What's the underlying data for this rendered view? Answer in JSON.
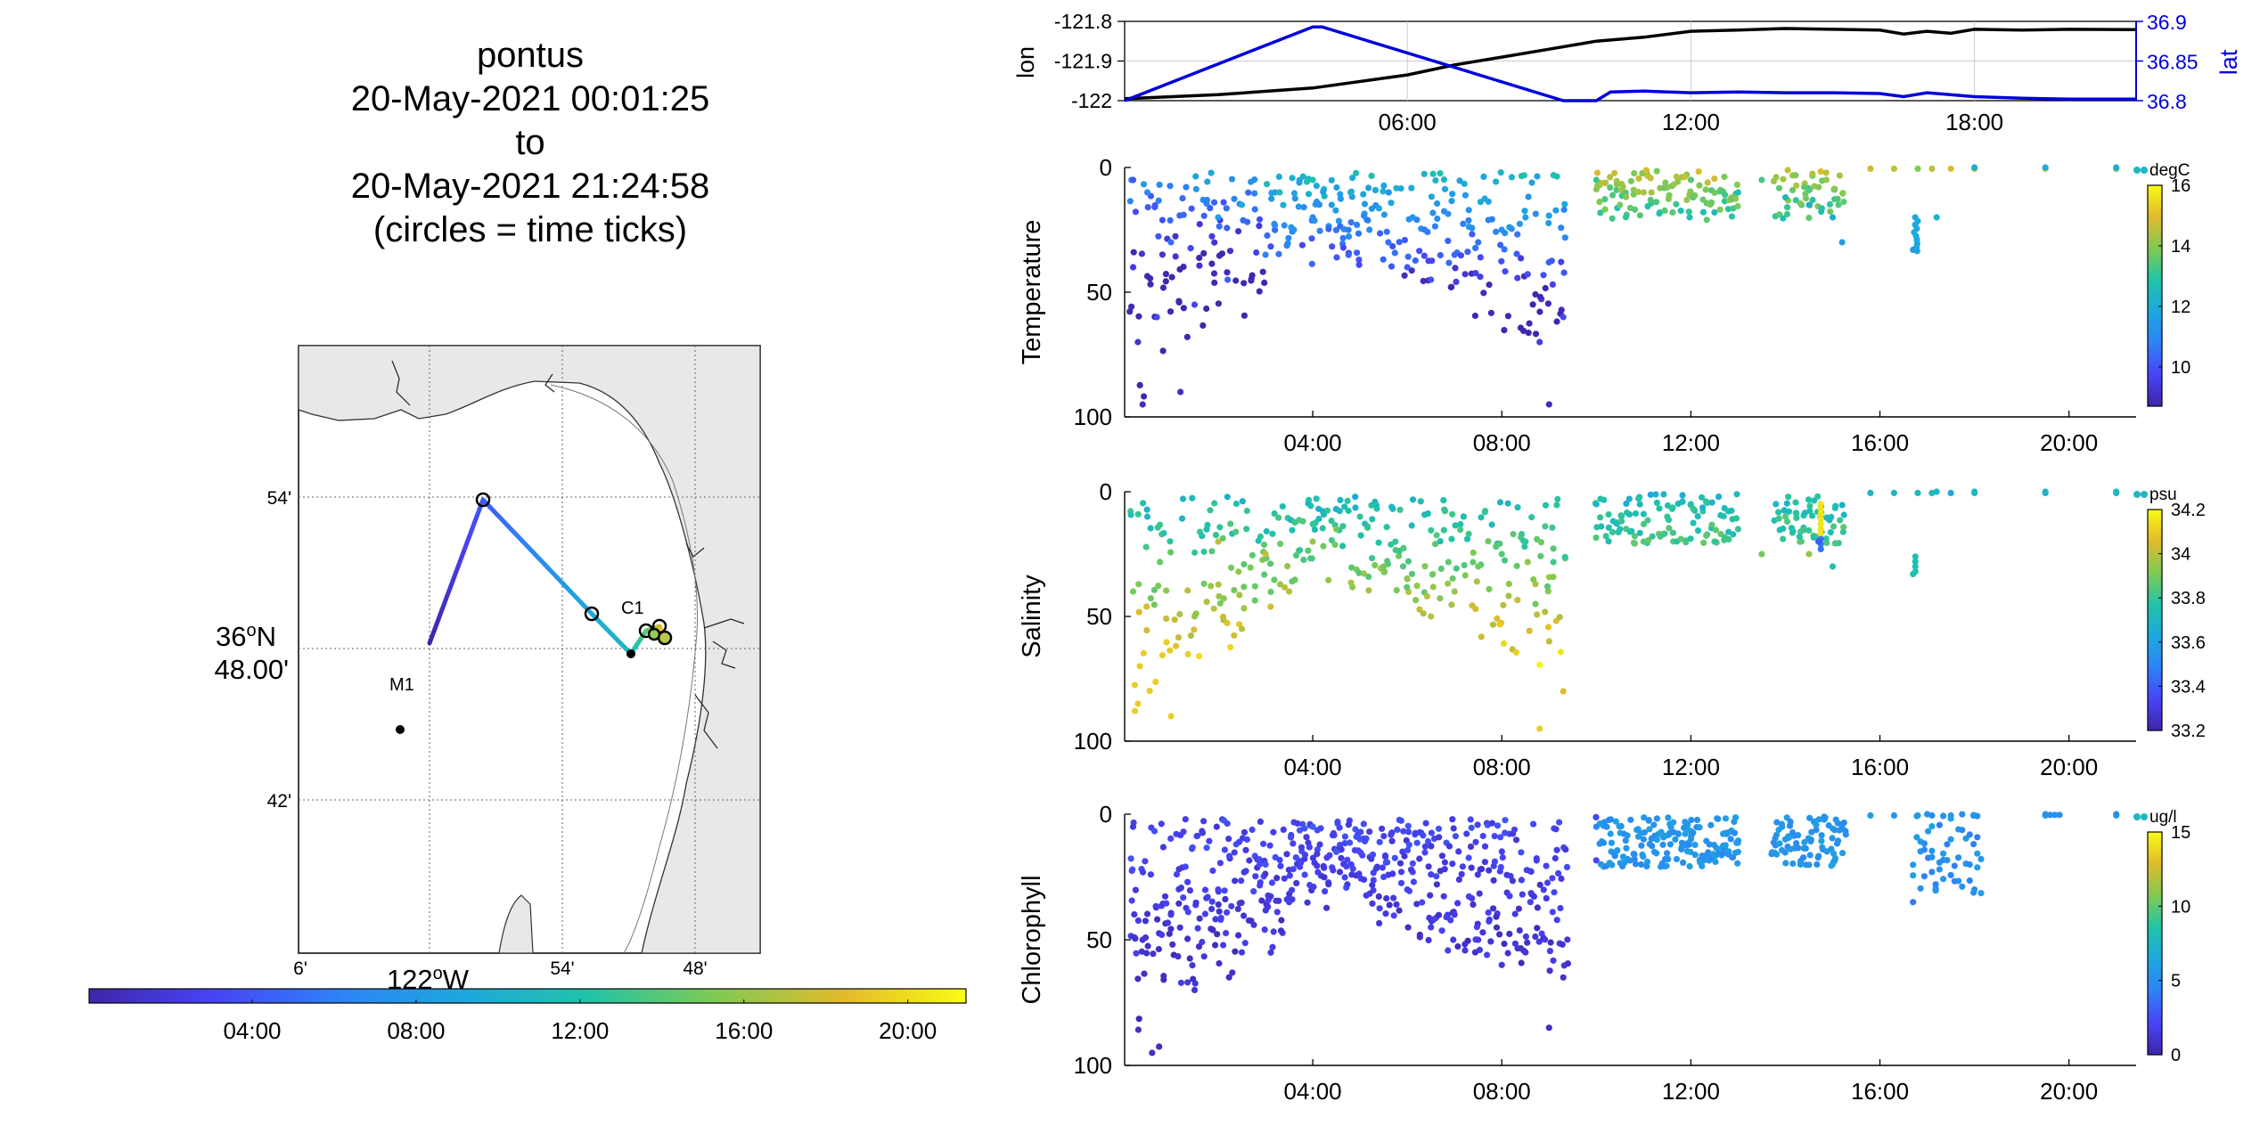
{
  "title": {
    "line1": "pontus",
    "line2": "20-May-2021 00:01:25",
    "line3": "to",
    "line4": "20-May-2021 21:24:58",
    "line5": "(circles = time ticks)"
  },
  "map": {
    "lat_labels": [
      "54'",
      "36oN 48.00'",
      "42'"
    ],
    "lon_labels": [
      "6'",
      "122oW",
      "54'",
      "48'"
    ],
    "station_m1": "M1",
    "station_c1": "C1",
    "time_colorbar_ticks": [
      "04:00",
      "08:00",
      "12:00",
      "16:00",
      "20:00"
    ]
  },
  "colors": {
    "parula": [
      "#3e26a8",
      "#4743f6",
      "#2d84f5",
      "#1da8dd",
      "#21c3a7",
      "#7dca55",
      "#e2ba2c",
      "#f9fb15"
    ],
    "lon_line": "#000000",
    "lat_line": "#0000dd",
    "land": "#e8e8e8"
  },
  "chart_data": [
    {
      "type": "line",
      "title": "",
      "xlabel": "",
      "ylabel": "lon",
      "ylabel_right": "lat",
      "x_ticks": [
        "06:00",
        "12:00",
        "18:00"
      ],
      "xlim_hours": [
        0.02,
        21.42
      ],
      "ylim_left": [
        -122.0,
        -121.8
      ],
      "y_ticks_left": [
        "-121.8",
        "-121.9",
        "-122"
      ],
      "ylim_right": [
        36.8,
        36.9
      ],
      "y_ticks_right": [
        "36.9",
        "36.85",
        "36.8"
      ],
      "grid": true,
      "series": [
        {
          "name": "lon",
          "axis": "left",
          "x": [
            0.02,
            2,
            4,
            6,
            7,
            8,
            9,
            10,
            11,
            12,
            13,
            14,
            15,
            16,
            16.5,
            17,
            17.5,
            18,
            19,
            20,
            21.42
          ],
          "values": [
            -121.995,
            -121.985,
            -121.968,
            -121.935,
            -121.91,
            -121.89,
            -121.87,
            -121.85,
            -121.84,
            -121.825,
            -121.822,
            -121.818,
            -121.82,
            -121.822,
            -121.832,
            -121.825,
            -121.83,
            -121.82,
            -121.822,
            -121.82,
            -121.821
          ]
        },
        {
          "name": "lat",
          "axis": "right",
          "x": [
            0.02,
            4,
            4.2,
            9.3,
            10,
            10.3,
            11,
            12,
            13,
            14,
            15,
            16,
            16.5,
            17,
            18,
            19,
            20,
            21.42
          ],
          "values": [
            36.8,
            36.893,
            36.893,
            36.8,
            36.8,
            36.811,
            36.812,
            36.81,
            36.811,
            36.81,
            36.81,
            36.809,
            36.805,
            36.81,
            36.805,
            36.803,
            36.802,
            36.802
          ]
        }
      ]
    },
    {
      "type": "scatter",
      "ylabel": "Temperature",
      "x_ticks": [
        "04:00",
        "08:00",
        "12:00",
        "16:00",
        "20:00"
      ],
      "xlim_hours": [
        0.02,
        21.42
      ],
      "ylim": [
        0,
        100
      ],
      "y_ticks": [
        "0",
        "50",
        "100"
      ],
      "y_reversed": true,
      "colorbar": {
        "unit": "degC",
        "ticks": [
          "16",
          "14",
          "12",
          "10"
        ],
        "range": [
          8.7,
          16.0
        ]
      },
      "series": [
        {
          "name": "glider profiles (time vs depth)",
          "x": [
            0.2,
            0.2,
            0.3,
            0.4,
            0.5,
            0.7,
            1.0,
            1.2,
            1.5,
            2.0,
            2.2,
            2.5,
            3.0,
            3.3,
            3.6,
            4.0,
            4.0,
            4.4,
            4.8,
            5.2,
            5.6,
            6.0,
            6.5,
            7.0,
            7.5,
            8.0,
            8.5,
            8.8,
            9.0,
            9.3,
            10.0,
            10.5,
            11.0,
            11.5,
            12.0,
            12.5,
            13.0,
            13.5,
            14.0,
            14.5,
            15.0,
            15.2,
            16.7,
            17.2,
            18.0,
            19.5,
            21.0
          ],
          "y": [
            5,
            40,
            70,
            95,
            10,
            60,
            30,
            90,
            55,
            20,
            45,
            15,
            35,
            10,
            25,
            5,
            20,
            15,
            10,
            25,
            30,
            40,
            45,
            35,
            30,
            25,
            20,
            70,
            95,
            60,
            5,
            15,
            10,
            8,
            5,
            18,
            10,
            5,
            12,
            15,
            20,
            30,
            33,
            20,
            0,
            0,
            0
          ],
          "values": [
            10,
            9.5,
            9.2,
            9.0,
            11,
            9.8,
            10.5,
            9.1,
            9.7,
            11.5,
            10.2,
            12,
            10.8,
            12.5,
            11.2,
            12.8,
            11.0,
            11.5,
            12,
            11,
            10.5,
            10.2,
            10.0,
            10.3,
            10.5,
            11,
            11.5,
            9.5,
            9.0,
            9.8,
            13.2,
            13.8,
            14.3,
            14.0,
            13.5,
            12.5,
            12.8,
            13.3,
            12.5,
            12.2,
            12.0,
            11.5,
            11.5,
            12.2,
            12.0,
            12.0,
            12.0
          ]
        }
      ]
    },
    {
      "type": "scatter",
      "ylabel": "Salinity",
      "x_ticks": [
        "04:00",
        "08:00",
        "12:00",
        "16:00",
        "20:00"
      ],
      "xlim_hours": [
        0.02,
        21.42
      ],
      "ylim": [
        0,
        100
      ],
      "y_ticks": [
        "0",
        "50",
        "100"
      ],
      "y_reversed": true,
      "colorbar": {
        "unit": "psu",
        "ticks": [
          "34.2",
          "34",
          "33.8",
          "33.6",
          "33.4",
          "33.2"
        ],
        "range": [
          33.2,
          34.2
        ]
      },
      "series": [
        {
          "name": "glider profiles (time vs depth)",
          "x": [
            0.2,
            0.3,
            0.5,
            1.0,
            1.5,
            2.0,
            2.5,
            3.0,
            3.5,
            4.0,
            4.5,
            5.0,
            5.5,
            6.0,
            6.5,
            7.0,
            7.5,
            8.0,
            8.5,
            8.8,
            9.0,
            9.3,
            10.0,
            10.5,
            11.0,
            11.5,
            12.0,
            12.5,
            13.0,
            13.5,
            14.0,
            14.5,
            14.7,
            15.0,
            16.7,
            17.2,
            18.0,
            19.5,
            21.0
          ],
          "y": [
            40,
            85,
            10,
            90,
            50,
            20,
            55,
            25,
            40,
            20,
            15,
            10,
            30,
            35,
            50,
            40,
            30,
            25,
            20,
            95,
            60,
            80,
            5,
            15,
            20,
            10,
            5,
            20,
            15,
            25,
            10,
            25,
            20,
            30,
            33,
            0,
            0,
            0,
            0
          ],
          "values": [
            33.9,
            34.1,
            33.7,
            34.1,
            33.95,
            34.0,
            34.0,
            34.0,
            34.0,
            33.95,
            33.9,
            33.8,
            33.9,
            33.95,
            34.0,
            33.95,
            33.9,
            33.85,
            33.8,
            34.1,
            34.0,
            34.05,
            33.7,
            33.75,
            33.85,
            33.8,
            33.75,
            33.8,
            33.8,
            33.9,
            33.85,
            33.95,
            33.4,
            33.75,
            33.75,
            33.7,
            33.7,
            33.7,
            33.7
          ]
        }
      ]
    },
    {
      "type": "scatter",
      "ylabel": "Chlorophyll",
      "x_ticks": [
        "04:00",
        "08:00",
        "12:00",
        "16:00",
        "20:00"
      ],
      "xlim_hours": [
        0.02,
        21.42
      ],
      "ylim": [
        0,
        100
      ],
      "y_ticks": [
        "0",
        "50",
        "100"
      ],
      "y_reversed": true,
      "colorbar": {
        "unit": "ug/l",
        "ticks": [
          "15",
          "10",
          "5",
          "0"
        ],
        "range": [
          0,
          15
        ]
      },
      "series": [
        {
          "name": "glider profiles (time vs depth)",
          "x": [
            0.2,
            0.4,
            0.6,
            1.0,
            1.5,
            2.0,
            2.5,
            3.0,
            3.5,
            4.0,
            4.5,
            5.0,
            5.5,
            6.0,
            6.5,
            7.0,
            7.5,
            8.0,
            8.5,
            9.0,
            9.3,
            10.0,
            11.0,
            12.0,
            13.0,
            14.0,
            15.0,
            16.7,
            17.0,
            17.5,
            18.0,
            19.5,
            21.0
          ],
          "y": [
            5,
            50,
            95,
            40,
            70,
            30,
            55,
            20,
            35,
            5,
            15,
            10,
            25,
            30,
            45,
            40,
            50,
            60,
            55,
            85,
            65,
            5,
            10,
            10,
            15,
            10,
            20,
            35,
            0,
            10,
            30,
            0,
            0
          ],
          "values": [
            1.5,
            1.2,
            0.8,
            1.5,
            1.2,
            2.0,
            1.5,
            2.5,
            1.8,
            3.0,
            2.8,
            2.5,
            2.2,
            2.0,
            1.8,
            1.5,
            1.5,
            1.3,
            1.2,
            0.8,
            1.0,
            4.5,
            5.0,
            5.5,
            6.0,
            5.5,
            6.5,
            4.0,
            5.0,
            5.5,
            5.0,
            5.0,
            5.0
          ]
        }
      ]
    }
  ]
}
